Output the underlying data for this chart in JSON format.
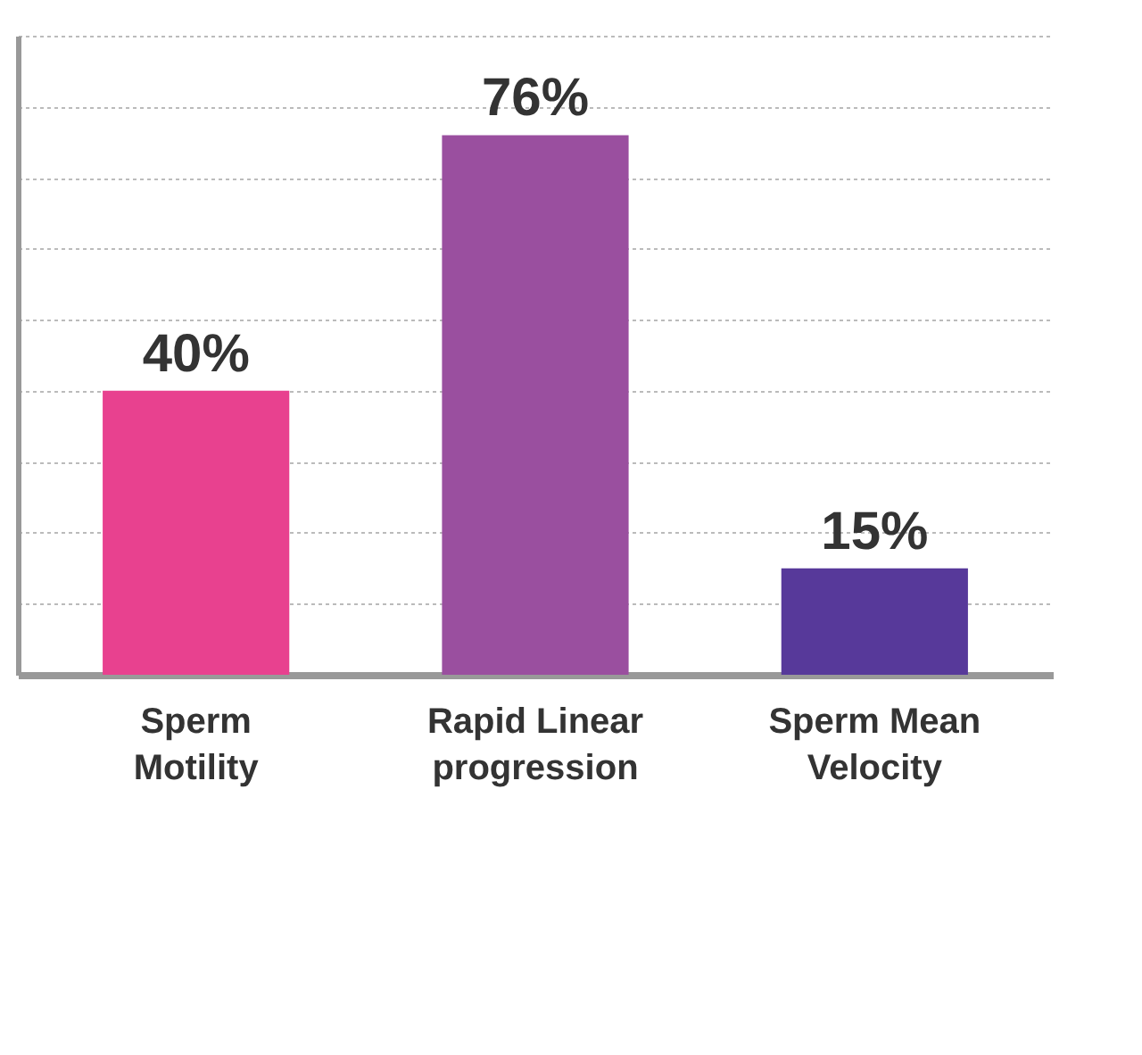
{
  "chart_data": {
    "type": "bar",
    "categories": [
      "Sperm Motility",
      "Rapid Linear progression",
      "Sperm Mean Velocity"
    ],
    "colors": [
      "#e8418f",
      "#9a4f9f",
      "#57399a"
    ],
    "values": [
      40,
      76,
      15
    ],
    "value_labels": [
      "40%",
      "76%",
      "15%"
    ],
    "ylim": [
      0,
      90
    ],
    "yticks": [
      {
        "value": 10,
        "label": null
      },
      {
        "value": 20,
        "label": null
      },
      {
        "value": 30,
        "label": null
      },
      {
        "value": 40,
        "label": null
      },
      {
        "value": 50,
        "label": null
      },
      {
        "value": 60,
        "label": null
      },
      {
        "value": 70,
        "label": null
      },
      {
        "value": 80,
        "label": null
      },
      {
        "value": 90,
        "label": null
      }
    ],
    "grid": "y",
    "tick_labels": "x"
  }
}
